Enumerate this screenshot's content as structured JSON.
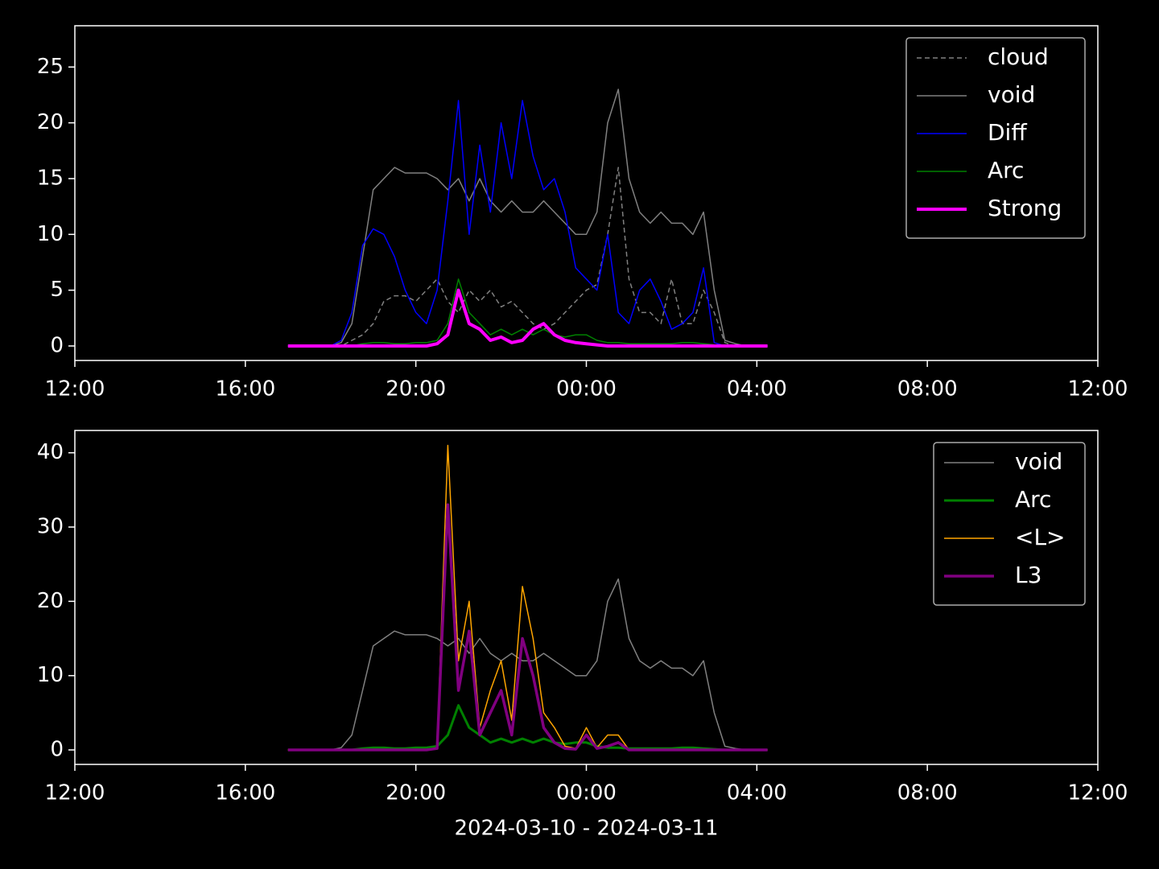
{
  "chart_data": [
    {
      "type": "line",
      "x": [
        5,
        5.25,
        5.5,
        5.75,
        6,
        6.25,
        6.5,
        6.75,
        7,
        7.25,
        7.5,
        7.75,
        8,
        8.25,
        8.5,
        8.75,
        9,
        9.25,
        9.5,
        9.75,
        10,
        10.25,
        10.5,
        10.75,
        11,
        11.25,
        11.5,
        11.75,
        12,
        12.25,
        12.5,
        12.75,
        13,
        13.25,
        13.5,
        13.75,
        14,
        14.25,
        14.5,
        14.75,
        15,
        15.25,
        15.5,
        15.75,
        16,
        16.25
      ],
      "xlim": [
        0,
        24
      ],
      "xticks": [
        {
          "value": 0,
          "label": "12:00"
        },
        {
          "value": 4,
          "label": "16:00"
        },
        {
          "value": 8,
          "label": "20:00"
        },
        {
          "value": 12,
          "label": "00:00"
        },
        {
          "value": 16,
          "label": "04:00"
        },
        {
          "value": 20,
          "label": "08:00"
        },
        {
          "value": 24,
          "label": "12:00"
        }
      ],
      "ylim": [
        -1.3,
        28.7
      ],
      "yticks": [
        0,
        5,
        10,
        15,
        20,
        25
      ],
      "legend": "upper right",
      "series": [
        {
          "name": "cloud",
          "color": "#808080",
          "linestyle": "dashed",
          "linewidth": 1.5,
          "values": [
            0,
            0,
            0,
            0,
            0,
            0,
            0.5,
            1,
            2,
            4,
            4.5,
            4.5,
            4,
            5,
            6,
            4,
            3,
            5,
            4,
            5,
            3.5,
            4,
            3,
            2,
            1.5,
            2,
            3,
            4,
            5,
            5.5,
            10,
            16,
            6,
            3,
            3,
            2,
            6,
            2,
            2,
            5,
            3,
            0.3,
            0,
            0,
            0,
            0
          ]
        },
        {
          "name": "void",
          "color": "#808080",
          "linestyle": "solid",
          "linewidth": 1.5,
          "values": [
            0,
            0,
            0,
            0,
            0,
            0.3,
            2,
            8,
            14,
            15,
            16,
            15.5,
            15.5,
            15.5,
            15,
            14,
            15,
            13,
            15,
            13,
            12,
            13,
            12,
            12,
            13,
            12,
            11,
            10,
            10,
            12,
            20,
            23,
            15,
            12,
            11,
            12,
            11,
            11,
            10,
            12,
            5,
            0.5,
            0.2,
            0,
            0,
            0
          ]
        },
        {
          "name": "Diff",
          "color": "#0000ff",
          "linestyle": "solid",
          "linewidth": 1.5,
          "values": [
            0,
            0,
            0,
            0,
            0,
            0.5,
            3,
            9,
            10.5,
            10,
            8,
            5,
            3,
            2,
            5,
            13,
            22,
            10,
            18,
            12,
            20,
            15,
            22,
            17,
            14,
            15,
            12,
            7,
            6,
            5,
            10,
            3,
            2,
            5,
            6,
            4,
            1.5,
            2,
            3,
            7,
            0.3,
            0,
            0,
            0,
            0,
            0
          ]
        },
        {
          "name": "Arc",
          "color": "#008000",
          "linestyle": "solid",
          "linewidth": 1.5,
          "values": [
            0,
            0,
            0,
            0,
            0,
            0,
            0,
            0.2,
            0.3,
            0.3,
            0.2,
            0.2,
            0.3,
            0.3,
            0.5,
            2,
            6,
            3,
            2,
            1,
            1.5,
            1,
            1.5,
            1,
            1.5,
            1,
            0.8,
            1,
            1,
            0.5,
            0.3,
            0.3,
            0.2,
            0.2,
            0.2,
            0.2,
            0.2,
            0.3,
            0.3,
            0.2,
            0.1,
            0,
            0,
            0,
            0,
            0
          ]
        },
        {
          "name": "Strong",
          "color": "#ff00ff",
          "linestyle": "solid",
          "linewidth": 4,
          "values": [
            0,
            0,
            0,
            0,
            0,
            0,
            0,
            0,
            0,
            0,
            0,
            0,
            0,
            0,
            0.2,
            1,
            5,
            2,
            1.5,
            0.5,
            0.8,
            0.3,
            0.5,
            1.5,
            2,
            1,
            0.5,
            0.3,
            0.2,
            0.1,
            0,
            0,
            0,
            0,
            0,
            0,
            0,
            0,
            0,
            0,
            0,
            0,
            0,
            0,
            0,
            0
          ]
        }
      ]
    },
    {
      "type": "line",
      "x": [
        5,
        5.25,
        5.5,
        5.75,
        6,
        6.25,
        6.5,
        6.75,
        7,
        7.25,
        7.5,
        7.75,
        8,
        8.25,
        8.5,
        8.75,
        9,
        9.25,
        9.5,
        9.75,
        10,
        10.25,
        10.5,
        10.75,
        11,
        11.25,
        11.5,
        11.75,
        12,
        12.25,
        12.5,
        12.75,
        13,
        13.25,
        13.5,
        13.75,
        14,
        14.25,
        14.5,
        14.75,
        15,
        15.25,
        15.5,
        15.75,
        16,
        16.25
      ],
      "xlim": [
        0,
        24
      ],
      "xticks": [
        {
          "value": 0,
          "label": "12:00"
        },
        {
          "value": 4,
          "label": "16:00"
        },
        {
          "value": 8,
          "label": "20:00"
        },
        {
          "value": 12,
          "label": "00:00"
        },
        {
          "value": 16,
          "label": "04:00"
        },
        {
          "value": 20,
          "label": "08:00"
        },
        {
          "value": 24,
          "label": "12:00"
        }
      ],
      "xlabel": "2024-03-10 - 2024-03-11",
      "ylim": [
        -1.95,
        43
      ],
      "yticks": [
        0,
        10,
        20,
        30,
        40
      ],
      "legend": "upper right",
      "series": [
        {
          "name": "void",
          "color": "#808080",
          "linestyle": "solid",
          "linewidth": 1.5,
          "values": [
            0,
            0,
            0,
            0,
            0,
            0.3,
            2,
            8,
            14,
            15,
            16,
            15.5,
            15.5,
            15.5,
            15,
            14,
            15,
            13,
            15,
            13,
            12,
            13,
            12,
            12,
            13,
            12,
            11,
            10,
            10,
            12,
            20,
            23,
            15,
            12,
            11,
            12,
            11,
            11,
            10,
            12,
            5,
            0.5,
            0.2,
            0,
            0,
            0
          ]
        },
        {
          "name": "Arc",
          "color": "#008000",
          "linestyle": "solid",
          "linewidth": 3,
          "values": [
            0,
            0,
            0,
            0,
            0,
            0,
            0,
            0.2,
            0.3,
            0.3,
            0.2,
            0.2,
            0.3,
            0.3,
            0.5,
            2,
            6,
            3,
            2,
            1,
            1.5,
            1,
            1.5,
            1,
            1.5,
            1,
            0.8,
            1,
            1,
            0.5,
            0.3,
            0.3,
            0.2,
            0.2,
            0.2,
            0.2,
            0.2,
            0.3,
            0.3,
            0.2,
            0.1,
            0,
            0,
            0,
            0,
            0
          ]
        },
        {
          "name": "<L>",
          "color": "#ffa500",
          "linestyle": "solid",
          "linewidth": 1.5,
          "values": [
            0,
            0,
            0,
            0,
            0,
            0,
            0,
            0,
            0,
            0,
            0,
            0,
            0,
            0,
            0.3,
            41,
            12,
            20,
            3,
            8,
            12,
            4,
            22,
            15,
            5,
            3,
            0.5,
            0.2,
            3,
            0.3,
            2,
            2,
            0,
            0,
            0,
            0,
            0,
            0,
            0,
            0,
            0,
            0,
            0,
            0,
            0,
            0
          ]
        },
        {
          "name": "L3",
          "color": "#800080",
          "linestyle": "solid",
          "linewidth": 3.5,
          "values": [
            0,
            0,
            0,
            0,
            0,
            0,
            0,
            0,
            0,
            0,
            0,
            0,
            0,
            0,
            0.2,
            33,
            8,
            16,
            2,
            5,
            8,
            2,
            15,
            10,
            3,
            1,
            0.2,
            0.1,
            2,
            0.2,
            0.5,
            1,
            0,
            0,
            0,
            0,
            0,
            0,
            0,
            0,
            0,
            0,
            0,
            0,
            0,
            0
          ]
        }
      ]
    }
  ]
}
